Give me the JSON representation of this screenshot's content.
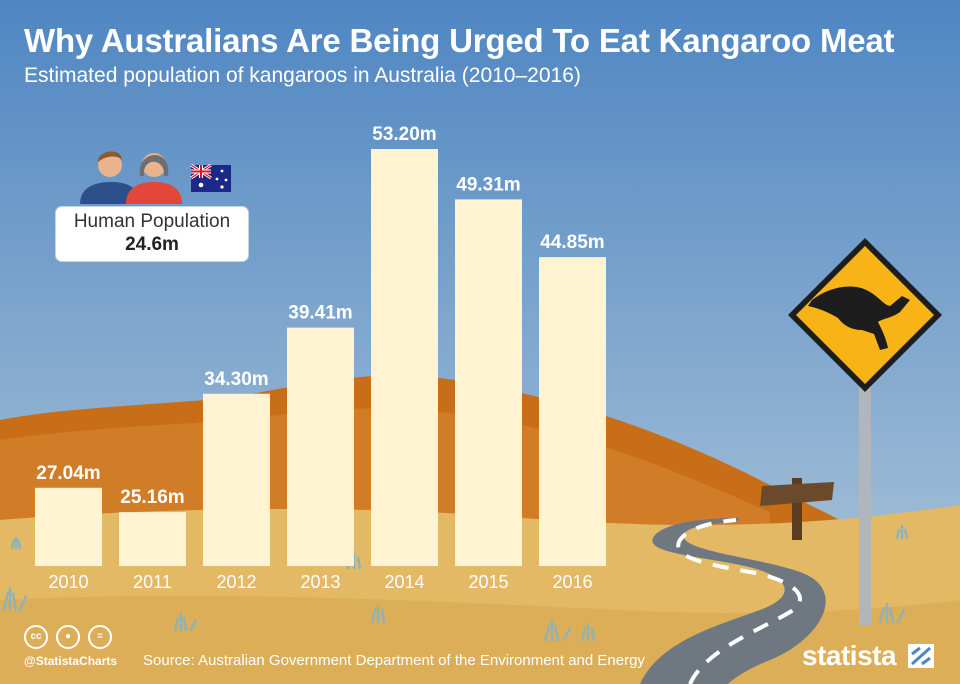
{
  "header": {
    "title": "Why Australians Are Being Urged To Eat Kangaroo Meat",
    "subtitle": "Estimated population of kangaroos in Australia (2010–2016)"
  },
  "human_population": {
    "label": "Human Population",
    "value": "24.6m"
  },
  "footer": {
    "handle": "@StatistaCharts",
    "source": "Source: Australian Government Department of the Environment and Energy",
    "brand": "statista"
  },
  "colors": {
    "sky_top": "#4f86c2",
    "sky_bottom": "#a9c3d9",
    "bar": "#fff3d2",
    "hill": "#d17a1e",
    "ground": "#e3b965",
    "road": "#6f7880",
    "sign": "#f8b316"
  },
  "icons": [
    "people-icon",
    "australia-flag-icon",
    "kangaroo-sign-icon",
    "road-icon",
    "cc-icon",
    "attribution-icon",
    "no-derivatives-icon",
    "statista-logo-icon"
  ],
  "chart_data": {
    "type": "bar",
    "categories": [
      "2010",
      "2011",
      "2012",
      "2013",
      "2014",
      "2015",
      "2016"
    ],
    "values": [
      27.04,
      25.16,
      34.3,
      39.41,
      53.2,
      49.31,
      44.85
    ],
    "value_labels": [
      "27.04m",
      "25.16m",
      "34.30m",
      "39.41m",
      "53.20m",
      "49.31m",
      "44.85m"
    ],
    "unit": "m",
    "ylim": [
      21,
      53.2
    ],
    "grid": false,
    "legend": "none"
  }
}
